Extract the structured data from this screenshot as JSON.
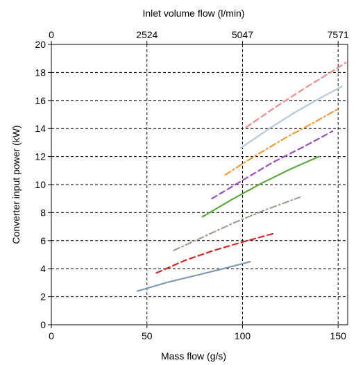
{
  "chart_data": {
    "type": "line",
    "xlabel": "Mass flow (g/s)",
    "ylabel": "Converter input power (kW)",
    "top_xlabel": "Inlet volume flow (l/min)",
    "xlim": [
      0,
      155
    ],
    "ylim": [
      0,
      20
    ],
    "x_ticks": [
      0,
      50,
      100,
      150
    ],
    "y_ticks": [
      0,
      2,
      4,
      6,
      8,
      10,
      12,
      14,
      16,
      18,
      20
    ],
    "top_x_ticks": [
      {
        "at": 0,
        "label": "0"
      },
      {
        "at": 50,
        "label": "2524"
      },
      {
        "at": 100,
        "label": "5047"
      },
      {
        "at": 150,
        "label": "7571"
      }
    ],
    "grid": true,
    "series": [
      {
        "color": "#7f99b3",
        "dash": "solid",
        "x": [
          45,
          60,
          75,
          90,
          104
        ],
        "y": [
          2.4,
          3.0,
          3.5,
          4.0,
          4.5
        ]
      },
      {
        "color": "#dd2222",
        "dash": "dashed",
        "x": [
          55,
          70,
          85,
          100,
          116
        ],
        "y": [
          3.7,
          4.6,
          5.3,
          5.9,
          6.5
        ]
      },
      {
        "color": "#a89a92",
        "dash": "dashdot",
        "x": [
          64,
          80,
          96,
          112,
          130
        ],
        "y": [
          5.3,
          6.3,
          7.3,
          8.2,
          9.1
        ]
      },
      {
        "color": "#5aaa3c",
        "dash": "solid",
        "x": [
          79,
          94,
          110,
          125,
          140
        ],
        "y": [
          7.7,
          8.9,
          10.1,
          11.1,
          12.0
        ]
      },
      {
        "color": "#9a4dbb",
        "dash": "dashed",
        "x": [
          84,
          100,
          116,
          132,
          147
        ],
        "y": [
          9.0,
          10.3,
          11.6,
          12.7,
          13.8
        ]
      },
      {
        "color": "#f09a3a",
        "dash": "dashdot",
        "x": [
          91,
          106,
          122,
          137,
          150
        ],
        "y": [
          10.7,
          12.0,
          13.3,
          14.4,
          15.4
        ]
      },
      {
        "color": "#b4c8d8",
        "dash": "solid",
        "x": [
          99,
          114,
          128,
          141,
          152
        ],
        "y": [
          12.6,
          14.0,
          15.2,
          16.2,
          17.0
        ]
      },
      {
        "color": "#f08a8a",
        "dash": "dashed",
        "x": [
          102,
          118,
          134,
          146,
          154
        ],
        "y": [
          14.1,
          15.6,
          17.0,
          18.0,
          18.7
        ]
      }
    ]
  }
}
